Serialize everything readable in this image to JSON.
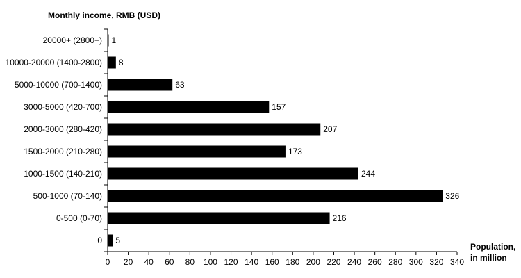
{
  "chart_data": {
    "type": "bar",
    "orientation": "horizontal",
    "ylabel": "Monthly income, RMB (USD)",
    "xlabel_line1": "Population,",
    "xlabel_line2": "in million",
    "categories": [
      "20000+ (2800+)",
      "10000-20000 (1400-2800)",
      "5000-10000 (700-1400)",
      "3000-5000 (420-700)",
      "2000-3000 (280-420)",
      "1500-2000 (210-280)",
      "1000-1500 (140-210)",
      "500-1000 (70-140)",
      "0-500 (0-70)",
      "0"
    ],
    "values": [
      1,
      8,
      63,
      157,
      207,
      173,
      244,
      326,
      216,
      5
    ],
    "xlim": [
      0,
      340
    ],
    "xticks": [
      0,
      20,
      40,
      60,
      80,
      100,
      120,
      140,
      160,
      180,
      200,
      220,
      240,
      260,
      280,
      300,
      320,
      340
    ],
    "grid": false,
    "bar_color": "#000000"
  }
}
